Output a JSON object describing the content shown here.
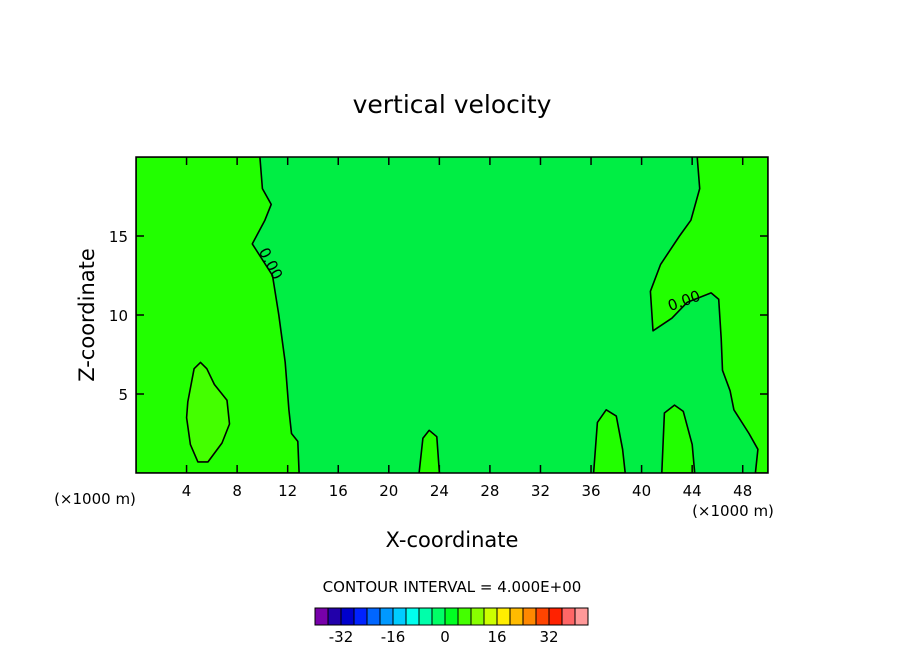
{
  "chart_data": {
    "type": "contour",
    "title": "vertical velocity",
    "xlabel": "X-coordinate",
    "ylabel": "Z-coordinate",
    "x_unit_left": "(×1000 m)",
    "x_unit_right": "(×1000 m)",
    "xlim": [
      0,
      50
    ],
    "ylim": [
      0,
      20
    ],
    "xticks": [
      4,
      8,
      12,
      16,
      20,
      24,
      28,
      32,
      36,
      40,
      44,
      48
    ],
    "yticks": [
      5,
      10,
      15
    ],
    "xtick_labels": [
      "4",
      "8",
      "12",
      "16",
      "20",
      "24",
      "28",
      "32",
      "36",
      "40",
      "44",
      "48"
    ],
    "ytick_labels": [
      "5",
      "10",
      "15"
    ],
    "contour_interval_text": "CONTOUR INTERVAL = 4.000E+00",
    "contour_labels": [
      {
        "text": "0.00",
        "x": 10.3,
        "z": 13.1
      },
      {
        "text": "0.00",
        "x": 43.5,
        "z": 10.6
      }
    ],
    "regions": [
      {
        "name": "left-positive",
        "color": "#22ff00",
        "polygon": [
          [
            0,
            20
          ],
          [
            9.8,
            20
          ],
          [
            10.0,
            18
          ],
          [
            10.7,
            17
          ],
          [
            10.2,
            16
          ],
          [
            9.2,
            14.5
          ],
          [
            10.8,
            12.5
          ],
          [
            11.3,
            10
          ],
          [
            11.8,
            7
          ],
          [
            12.1,
            4
          ],
          [
            12.3,
            2.5
          ],
          [
            12.8,
            2.0
          ],
          [
            12.9,
            0
          ],
          [
            0,
            0
          ]
        ]
      },
      {
        "name": "right-positive",
        "color": "#22ff00",
        "polygon": [
          [
            50,
            20
          ],
          [
            44.4,
            20
          ],
          [
            44.6,
            18
          ],
          [
            43.9,
            16
          ],
          [
            43.0,
            15
          ],
          [
            41.5,
            13.2
          ],
          [
            40.7,
            11.5
          ],
          [
            40.9,
            9.0
          ],
          [
            42.4,
            9.8
          ],
          [
            43.6,
            10.8
          ],
          [
            45.5,
            11.4
          ],
          [
            46.1,
            11.0
          ],
          [
            46.3,
            8.5
          ],
          [
            46.4,
            6.5
          ],
          [
            47.0,
            5.2
          ],
          [
            47.3,
            4.0
          ],
          [
            48.5,
            2.5
          ],
          [
            49.2,
            1.5
          ],
          [
            49.0,
            0
          ],
          [
            50,
            0
          ]
        ]
      },
      {
        "name": "cell-23",
        "color": "#22ff00",
        "polygon": [
          [
            22.4,
            0
          ],
          [
            22.7,
            2.2
          ],
          [
            23.2,
            2.7
          ],
          [
            23.8,
            2.3
          ],
          [
            24.0,
            0
          ]
        ]
      },
      {
        "name": "cell-37",
        "color": "#22ff00",
        "polygon": [
          [
            36.2,
            0
          ],
          [
            36.5,
            3.2
          ],
          [
            37.2,
            4.0
          ],
          [
            38.0,
            3.6
          ],
          [
            38.5,
            1.5
          ],
          [
            38.7,
            0
          ]
        ]
      },
      {
        "name": "cell-42",
        "color": "#22ff00",
        "polygon": [
          [
            41.6,
            0
          ],
          [
            41.8,
            3.8
          ],
          [
            42.6,
            4.3
          ],
          [
            43.3,
            3.9
          ],
          [
            44.0,
            1.8
          ],
          [
            44.2,
            0
          ]
        ]
      },
      {
        "name": "cell-5",
        "color": "#44ff00",
        "polygon": [
          [
            4.1,
            4.5
          ],
          [
            4.6,
            6.6
          ],
          [
            5.1,
            7.0
          ],
          [
            5.6,
            6.6
          ],
          [
            6.2,
            5.6
          ],
          [
            7.2,
            4.6
          ],
          [
            7.4,
            3.1
          ],
          [
            6.8,
            1.9
          ],
          [
            5.7,
            0.7
          ],
          [
            4.9,
            0.7
          ],
          [
            4.3,
            1.8
          ],
          [
            4.0,
            3.5
          ]
        ]
      }
    ],
    "colorbar": {
      "colors": [
        "#7700aa",
        "#2200aa",
        "#0000cc",
        "#0022ff",
        "#0066ff",
        "#0099ff",
        "#00ccff",
        "#00ffee",
        "#00ffaa",
        "#00ff66",
        "#00ff22",
        "#44ff00",
        "#88ff00",
        "#ccff00",
        "#ffee00",
        "#ffbb00",
        "#ff8800",
        "#ff4400",
        "#ff2200",
        "#ff6666",
        "#ff9999"
      ],
      "tick_labels": [
        "-32",
        "-16",
        "0",
        "16",
        "32"
      ],
      "tick_values": [
        -32,
        -16,
        0,
        16,
        32
      ],
      "range": [
        -40,
        44
      ]
    },
    "background_color": "#00ee44"
  }
}
